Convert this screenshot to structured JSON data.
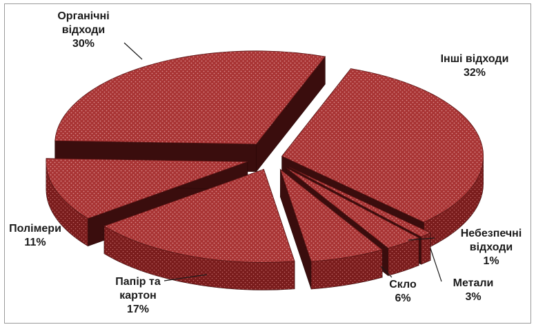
{
  "chart_data": {
    "type": "pie",
    "style": "3d-exploded",
    "title": "",
    "slices": [
      {
        "name": "Інші відходи",
        "value": 32,
        "label_lines": [
          "Інші відходи",
          "32%"
        ]
      },
      {
        "name": "Небезпечні відходи",
        "value": 1,
        "label_lines": [
          "Небезпечні",
          "відходи",
          "1%"
        ]
      },
      {
        "name": "Метали",
        "value": 3,
        "label_lines": [
          "Метали",
          "3%"
        ]
      },
      {
        "name": "Скло",
        "value": 6,
        "label_lines": [
          "Скло",
          "6%"
        ]
      },
      {
        "name": "Папір та картон",
        "value": 17,
        "label_lines": [
          "Папір та",
          "картон",
          "17%"
        ]
      },
      {
        "name": "Полімери",
        "value": 11,
        "label_lines": [
          "Полімери",
          "11%"
        ]
      },
      {
        "name": "Органічні відходи",
        "value": 30,
        "label_lines": [
          "Органічні",
          "відходи",
          "30%"
        ]
      }
    ],
    "colors": {
      "top": "#a83434",
      "side": "#7a1c1c",
      "dark": "#3a0d0d",
      "dot": "#d98a8a",
      "separator": "#8a8a8a"
    },
    "legend": "none"
  }
}
